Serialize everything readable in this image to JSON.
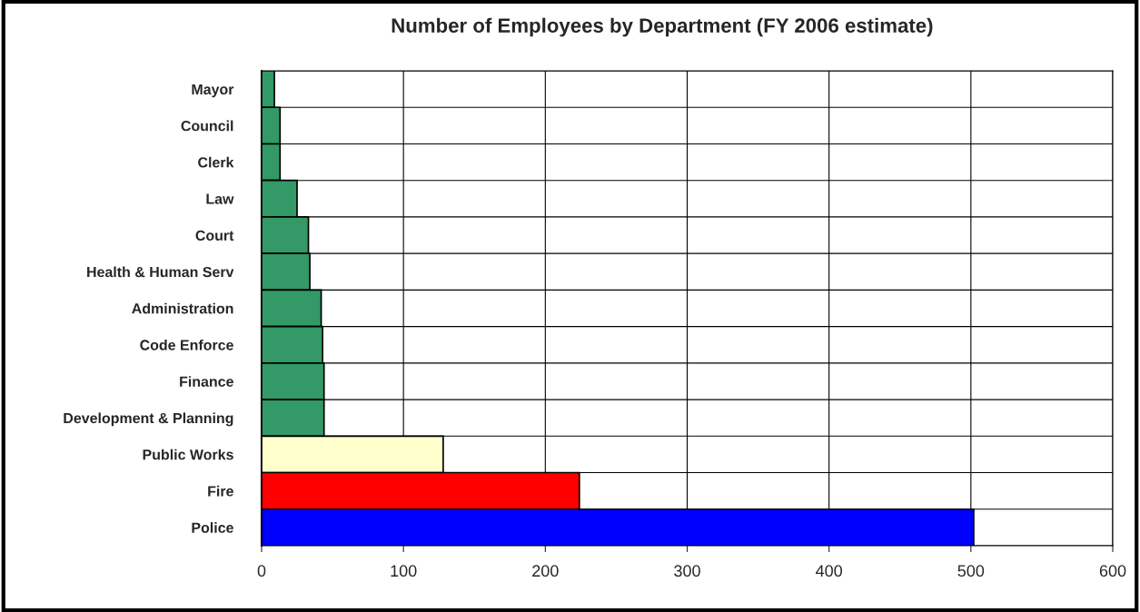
{
  "chart_data": {
    "type": "bar",
    "orientation": "horizontal",
    "title": "Number of Employees by Department (FY 2006 estimate)",
    "categories": [
      "Mayor",
      "Council",
      "Clerk",
      "Law",
      "Court",
      "Health & Human Serv",
      "Administration",
      "Code Enforce",
      "Finance",
      "Development & Planning",
      "Public Works",
      "Fire",
      "Police"
    ],
    "values": [
      9,
      13,
      13,
      25,
      33,
      34,
      42,
      43,
      44,
      44,
      128,
      224,
      502
    ],
    "colors": [
      "#339966",
      "#339966",
      "#339966",
      "#339966",
      "#339966",
      "#339966",
      "#339966",
      "#339966",
      "#339966",
      "#339966",
      "#ffffcc",
      "#ff0000",
      "#0000ff"
    ],
    "xlim": [
      0,
      600
    ],
    "xticks": [
      0,
      100,
      200,
      300,
      400,
      500,
      600
    ],
    "grid": true
  }
}
